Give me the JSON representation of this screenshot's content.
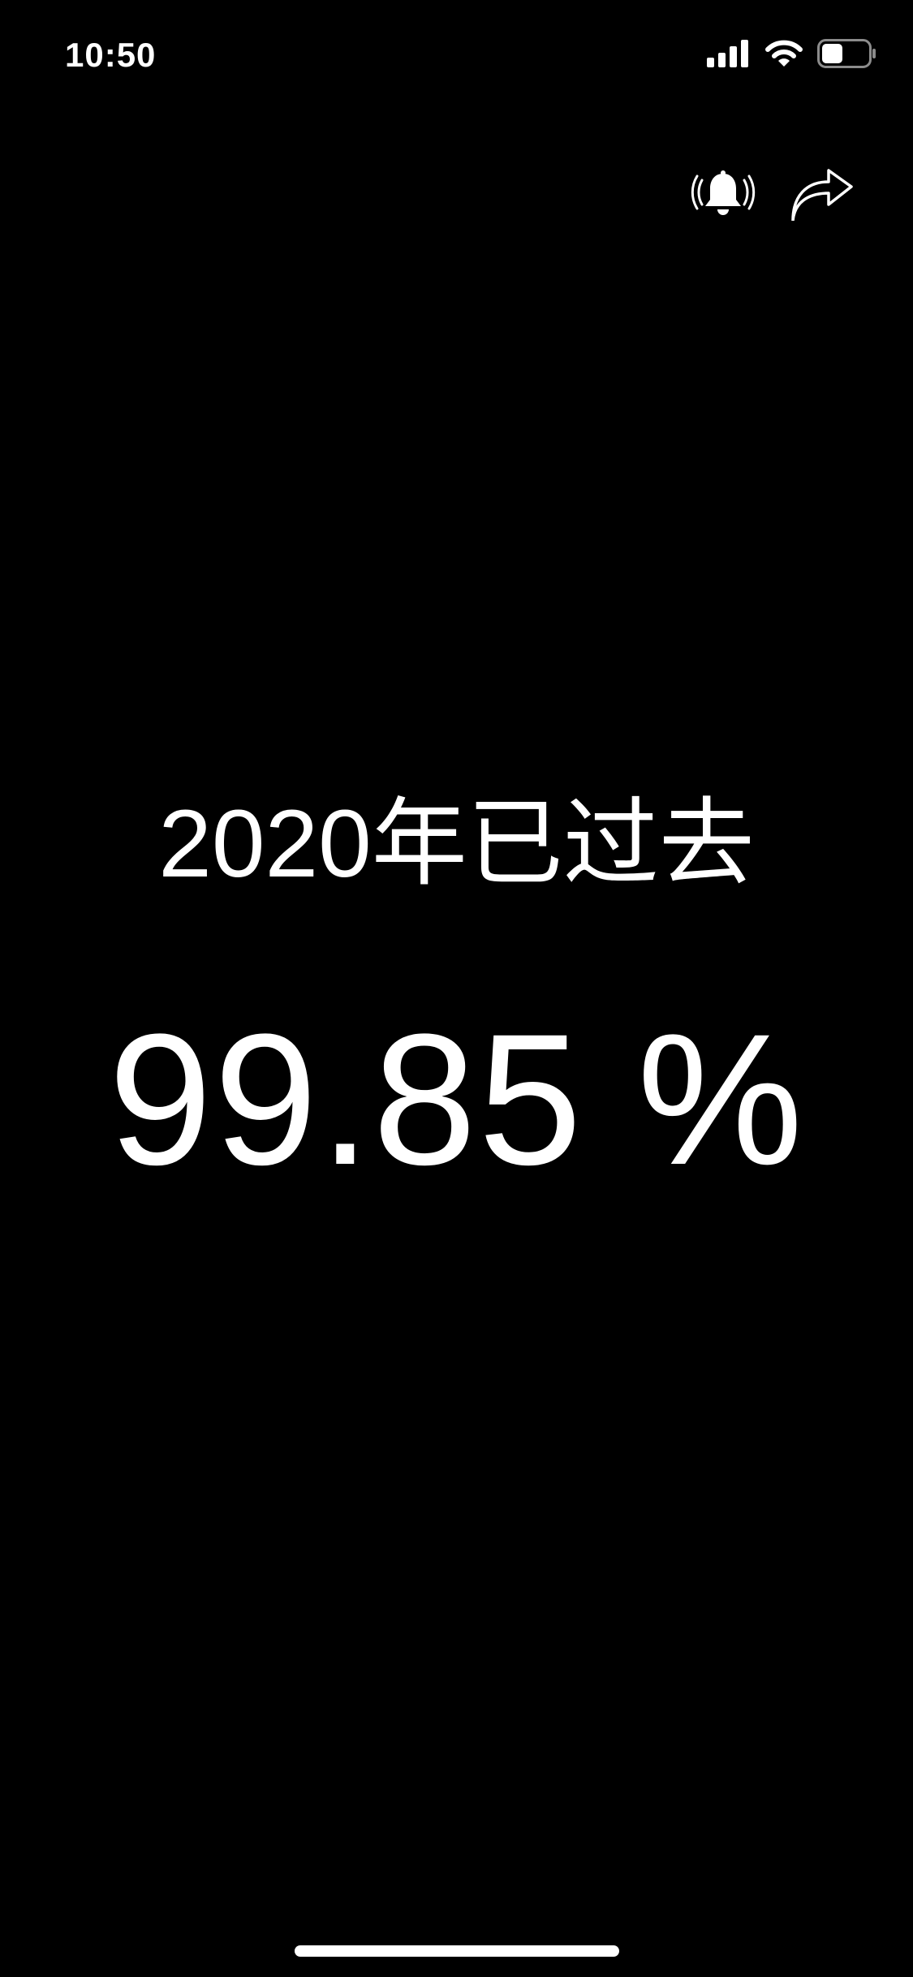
{
  "status_bar": {
    "time": "10:50",
    "icons": [
      "cellular-signal-icon",
      "wifi-icon",
      "battery-icon"
    ],
    "battery_level": 0.45
  },
  "toolbar": {
    "icons": [
      "bell-ringing-icon",
      "share-arrow-icon"
    ]
  },
  "main": {
    "headline": "2020年已过去",
    "progress_text": "99.85 %",
    "progress_value": 99.85
  },
  "colors": {
    "background": "#000000",
    "foreground": "#ffffff"
  }
}
